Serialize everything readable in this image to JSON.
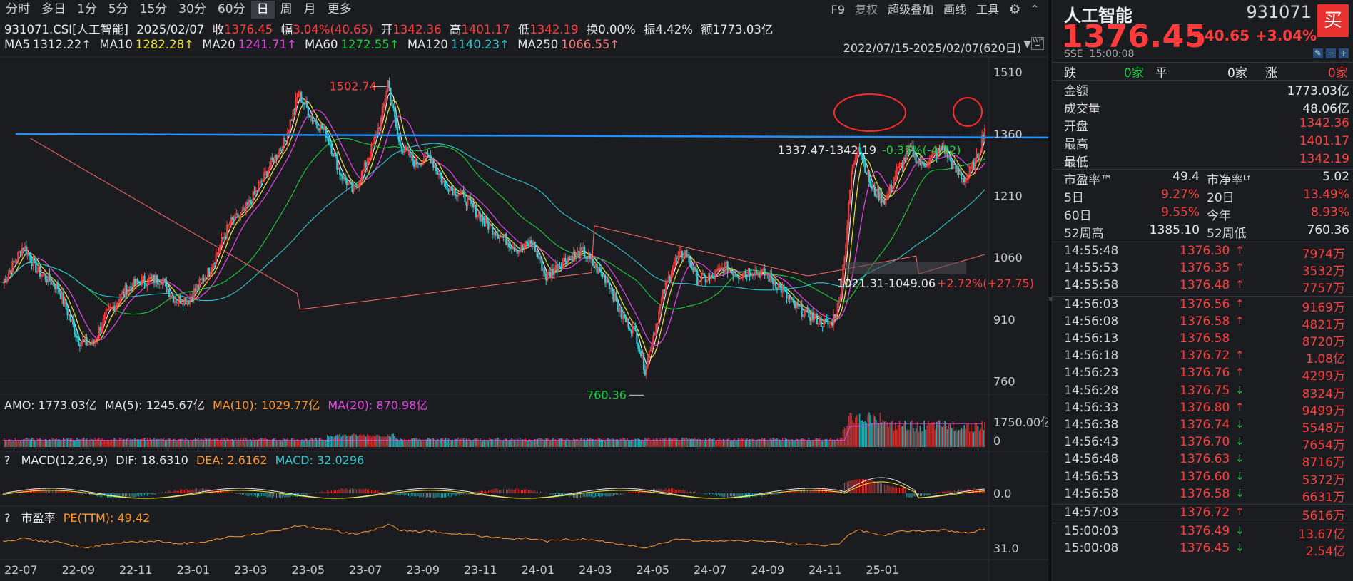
{
  "toolbar": {
    "periods": [
      "分时",
      "多日",
      "1分",
      "5分",
      "15分",
      "30分",
      "60分",
      "日",
      "周",
      "月",
      "更多"
    ],
    "active_period": "日",
    "right_items": [
      "F9",
      "复权",
      "超级叠加",
      "画线",
      "工具"
    ]
  },
  "header": {
    "code_name": "931071.CSI[人工智能]",
    "date": "2025/02/07",
    "close_label": "收",
    "close_value": "1376.45",
    "amp_label": "幅",
    "amp_value": "3.04%(40.65)",
    "open_label": "开",
    "open_value": "1342.36",
    "high_label": "高",
    "high_value": "1401.17",
    "low_label": "低",
    "low_value": "1342.19",
    "turnover_label": "换",
    "turnover_value": "0.00%",
    "swing_label": "振",
    "swing_value": "4.42%",
    "amount_label": "额",
    "amount_value": "1773.03亿"
  },
  "ma_legend": {
    "ma5": "MA5",
    "ma5_value": "1312.22↑",
    "ma10": "MA10",
    "ma10_value": "1282.28↑",
    "ma20": "MA20",
    "ma20_value": "1241.71↑",
    "ma60": "MA60",
    "ma60_value": "1272.55↑",
    "ma120": "MA120",
    "ma120_value": "1140.23↑",
    "ma250": "MA250",
    "ma250_value": "1066.55↑"
  },
  "date_range": "2022/07/15-2025/02/07(620日)",
  "chart": {
    "y_axis_labels": [
      "1510",
      "1360",
      "1210",
      "1060",
      "910",
      "760"
    ],
    "x_axis_labels": [
      "22-07",
      "22-09",
      "22-11",
      "23-01",
      "23-03",
      "23-05",
      "23-07",
      "23-09",
      "23-11",
      "24-01",
      "24-03",
      "24-05",
      "24-07",
      "24-09",
      "24-11",
      "25-01"
    ],
    "high_marker": "1502.74",
    "low_marker": "760.36",
    "annotation_upper": "1337.47-1342.19",
    "annotation_upper_change": "-0.35%(-4.72)",
    "annotation_lower": "1021.31-1049.06",
    "annotation_lower_change": "+2.72%(+27.75)"
  },
  "amo": {
    "label": "AMO: 1773.03亿",
    "ma5": "MA(5): 1245.67亿",
    "ma10": "MA(10): 1029.77亿",
    "ma20": "MA(20): 870.98亿",
    "axis_top": "1750.00亿",
    "axis_zero": "0"
  },
  "macd": {
    "help": "?",
    "label": "MACD(12,26,9)",
    "dif": "DIF: 18.6310",
    "dea": "DEA: 2.6162",
    "macd": "MACD: 32.0296",
    "axis_zero": "0.0"
  },
  "pe": {
    "help": "?",
    "label": "市盈率",
    "value": "PE(TTM): 49.42",
    "axis_value": "31.0"
  },
  "quote": {
    "name": "人工智能",
    "code": "931071",
    "buy_label": "买",
    "price": "1376.45",
    "change": "+40.65",
    "change_pct": "+3.04%",
    "exchange": "SSE",
    "time": "15:00:08",
    "fall_label": "跌",
    "fall_value": "0家",
    "flat_label": "平",
    "flat_value": "0家",
    "rise_label": "涨",
    "rise_value": "0家",
    "amount_label": "金额",
    "amount_value": "1773.03亿",
    "volume_label": "成交量",
    "volume_value": "48.06亿",
    "open_label": "开盘",
    "open_value": "1342.36",
    "high_label": "最高",
    "high_value": "1401.17",
    "low_label": "最低",
    "low_value": "1342.19",
    "pe_label": "市盈率™",
    "pe_value": "49.4",
    "pb_label": "市净率ᴸᶠ",
    "pb_value": "5.02",
    "d5_label": "5日",
    "d5_value": "9.27%",
    "d20_label": "20日",
    "d20_value": "13.49%",
    "d60_label": "60日",
    "d60_value": "9.55%",
    "ytd_label": "今年",
    "ytd_value": "8.93%",
    "w52h_label": "52周高",
    "w52h_value": "1385.10",
    "w52l_label": "52周低",
    "w52l_value": "760.36"
  },
  "ticks": [
    {
      "time": "14:55:48",
      "price": "1376.30",
      "dir": "up",
      "vol": "7974万"
    },
    {
      "time": "14:55:53",
      "price": "1376.35",
      "dir": "up",
      "vol": "3532万"
    },
    {
      "time": "14:55:58",
      "price": "1376.48",
      "dir": "up",
      "vol": "7757万"
    },
    {
      "time": "14:56:03",
      "price": "1376.56",
      "dir": "up",
      "vol": "9169万"
    },
    {
      "time": "14:56:08",
      "price": "1376.58",
      "dir": "up",
      "vol": "4821万"
    },
    {
      "time": "14:56:13",
      "price": "1376.58",
      "dir": "none",
      "vol": "8720万"
    },
    {
      "time": "14:56:18",
      "price": "1376.72",
      "dir": "up",
      "vol": "1.08亿"
    },
    {
      "time": "14:56:23",
      "price": "1376.76",
      "dir": "up",
      "vol": "4299万"
    },
    {
      "time": "14:56:28",
      "price": "1376.75",
      "dir": "down",
      "vol": "8324万"
    },
    {
      "time": "14:56:33",
      "price": "1376.80",
      "dir": "up",
      "vol": "9499万"
    },
    {
      "time": "14:56:38",
      "price": "1376.74",
      "dir": "down",
      "vol": "5548万"
    },
    {
      "time": "14:56:43",
      "price": "1376.70",
      "dir": "down",
      "vol": "7654万"
    },
    {
      "time": "14:56:48",
      "price": "1376.63",
      "dir": "down",
      "vol": "8716万"
    },
    {
      "time": "14:56:53",
      "price": "1376.60",
      "dir": "down",
      "vol": "5372万"
    },
    {
      "time": "14:56:58",
      "price": "1376.58",
      "dir": "down",
      "vol": "6631万"
    },
    {
      "time": "14:57:03",
      "price": "1376.72",
      "dir": "up",
      "vol": "5616万"
    },
    {
      "time": "15:00:03",
      "price": "1376.49",
      "dir": "down",
      "vol": "13.67亿"
    },
    {
      "time": "15:00:08",
      "price": "1376.45",
      "dir": "down",
      "vol": "2.54亿"
    }
  ],
  "colors": {
    "background": "#1b1c20",
    "up": "#ff4040",
    "down": "#14d23c",
    "ma5": "#e8e8e8",
    "ma10": "#f2e62b",
    "ma20": "#e845e8",
    "ma60": "#14d23c",
    "ma120": "#2bc9d0",
    "ma250": "#ff6a6a",
    "annotation_arrow": "#1e90ff"
  }
}
